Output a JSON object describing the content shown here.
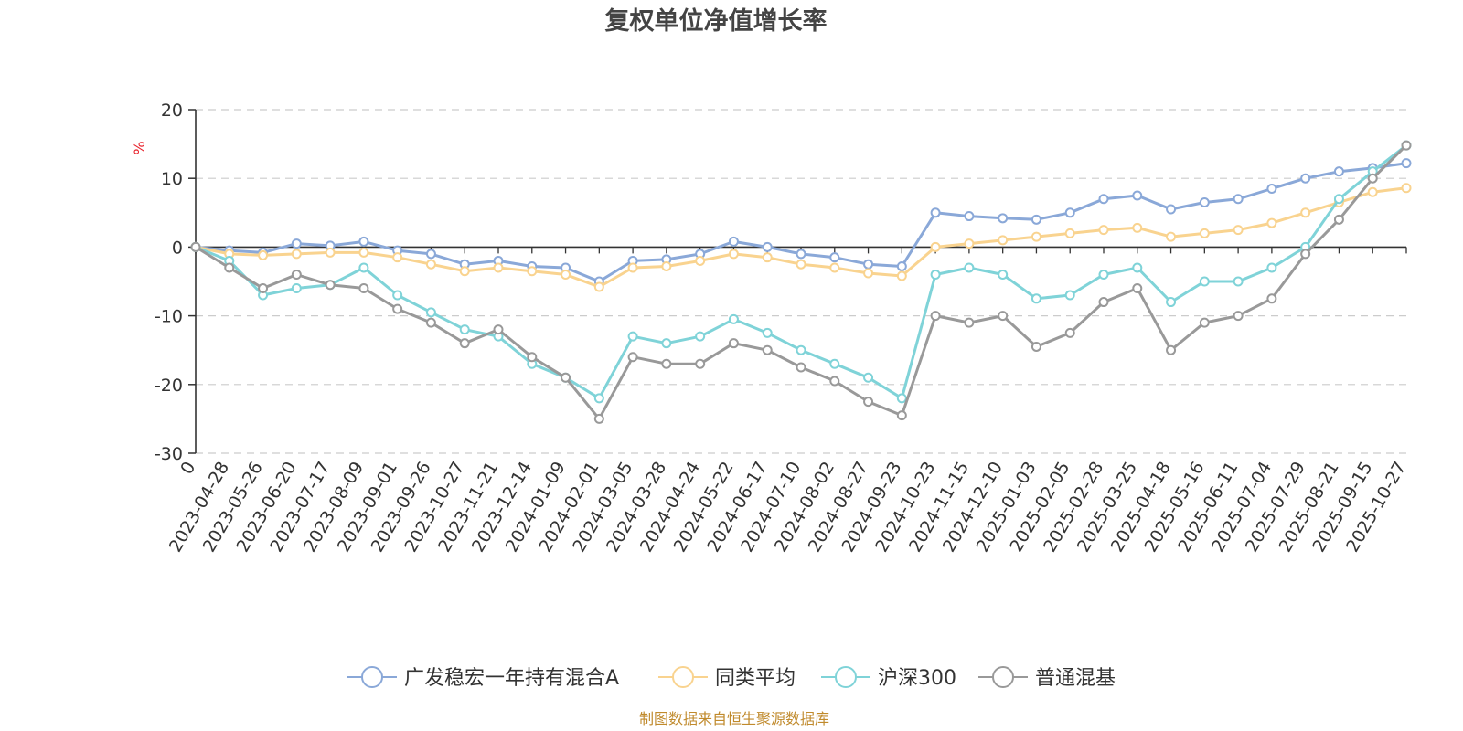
{
  "chart_data": {
    "type": "line",
    "title": "复权单位净值增长率",
    "ylabel": "%",
    "xlabel": "",
    "ylim": [
      -30,
      20
    ],
    "yticks": [
      20,
      10,
      0,
      -10,
      -20,
      -30
    ],
    "grid": "horizontal-dashed",
    "legend_position": "bottom",
    "categories": [
      "0",
      "2023-04-28",
      "2023-05-26",
      "2023-06-20",
      "2023-07-17",
      "2023-08-09",
      "2023-09-01",
      "2023-09-26",
      "2023-10-27",
      "2023-11-21",
      "2023-12-14",
      "2024-01-09",
      "2024-02-01",
      "2024-03-05",
      "2024-03-28",
      "2024-04-24",
      "2024-05-22",
      "2024-06-17",
      "2024-07-10",
      "2024-08-02",
      "2024-08-27",
      "2024-09-23",
      "2024-10-23",
      "2024-11-15",
      "2024-12-10",
      "2025-01-03",
      "2025-02-05",
      "2025-02-28",
      "2025-03-25",
      "2025-04-18",
      "2025-05-16",
      "2025-06-11",
      "2025-07-04",
      "2025-07-29",
      "2025-08-21",
      "2025-09-15",
      "2025-10-27"
    ],
    "series": [
      {
        "name": "广发稳宏一年持有混合A",
        "color": "#8aa8d8",
        "values": [
          0,
          -0.5,
          -0.8,
          0.5,
          0.2,
          0.8,
          -0.5,
          -1,
          -2.5,
          -2,
          -2.8,
          -3,
          -5,
          -2,
          -1.8,
          -1,
          0.8,
          0,
          -1,
          -1.5,
          -2.5,
          -2.8,
          5,
          4.5,
          4.2,
          4,
          5,
          7,
          7.5,
          5.5,
          6.5,
          7,
          8.5,
          10,
          11,
          11.5,
          12.2
        ]
      },
      {
        "name": "同类平均",
        "color": "#f9d38f",
        "values": [
          0,
          -1,
          -1.2,
          -1,
          -0.8,
          -0.8,
          -1.5,
          -2.5,
          -3.5,
          -3,
          -3.5,
          -4,
          -5.8,
          -3,
          -2.8,
          -2,
          -1,
          -1.5,
          -2.5,
          -3,
          -3.8,
          -4.2,
          0,
          0.5,
          1,
          1.5,
          2,
          2.5,
          2.8,
          1.5,
          2,
          2.5,
          3.5,
          5,
          6.5,
          8,
          8.6
        ]
      },
      {
        "name": "沪深300",
        "color": "#7fd3d8",
        "values": [
          0,
          -2,
          -7,
          -6,
          -5.5,
          -3,
          -7,
          -9.5,
          -12,
          -13,
          -17,
          -19,
          -22,
          -13,
          -14,
          -13,
          -10.5,
          -12.5,
          -15,
          -17,
          -19,
          -22,
          -4,
          -3,
          -4,
          -7.5,
          -7,
          -4,
          -3,
          -8,
          -5,
          -5,
          -3,
          0,
          7,
          11,
          14.8
        ]
      },
      {
        "name": "普通混基",
        "color": "#999999",
        "values": [
          0,
          -3,
          -6,
          -4,
          -5.5,
          -6,
          -9,
          -11,
          -14,
          -12,
          -16,
          -19,
          -25,
          -16,
          -17,
          -17,
          -14,
          -15,
          -17.5,
          -19.5,
          -22.5,
          -24.5,
          -10,
          -11,
          -10,
          -14.5,
          -12.5,
          -8,
          -6,
          -15,
          -11,
          -10,
          -7.5,
          -1,
          4,
          10,
          14.8
        ]
      }
    ],
    "source": "制图数据来自恒生聚源数据库"
  }
}
